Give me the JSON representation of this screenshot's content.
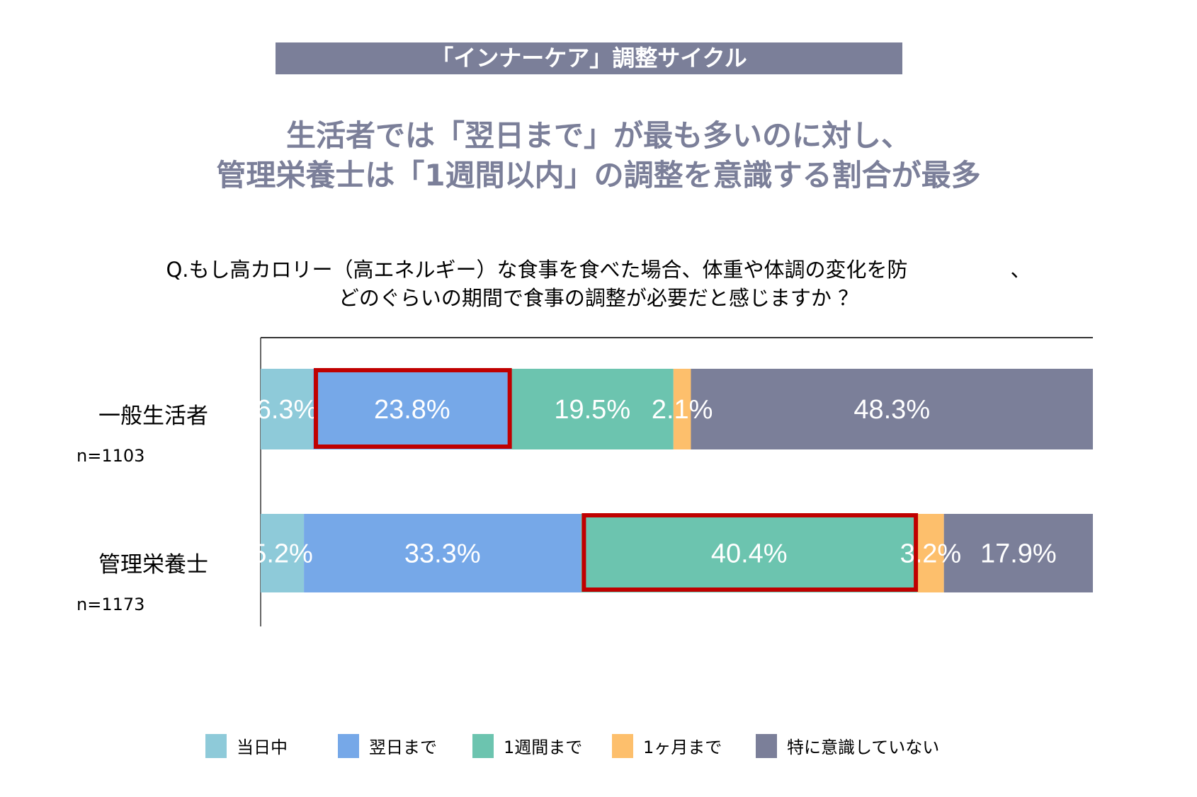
{
  "banner": "「インナーケア」調整サイクル",
  "headline": [
    "生活者では「翌日まで」が最も多いのに対し、",
    "管理栄養士は「1週間以内」の調整を意識する割合が最多"
  ],
  "question": [
    "Q.もし高カロリー（高エネルギー）な食事を食べた場合、体重や体調の変化を防　　　　　、",
    "どのぐらいの期間で食事の調整が必要だと感じますか ？"
  ],
  "rows": [
    {
      "label": "一般生活者",
      "n": "n=1103"
    },
    {
      "label": "管理栄養士",
      "n": "n=1173"
    }
  ],
  "chart_data": {
    "type": "bar",
    "orientation": "horizontal-stacked-100",
    "categories": [
      "一般生活者",
      "管理栄養士"
    ],
    "series": [
      {
        "name": "当日中",
        "values": [
          6.3,
          5.2
        ],
        "color": "#8ecad9"
      },
      {
        "name": "翌日まで",
        "values": [
          23.8,
          33.3
        ],
        "color": "#76a8e8"
      },
      {
        "name": "1週間まで",
        "values": [
          19.5,
          40.4
        ],
        "color": "#6cc4af"
      },
      {
        "name": "1ヶ月まで",
        "values": [
          2.1,
          3.2
        ],
        "color": "#fdbf6c"
      },
      {
        "name": "特に意識していない",
        "values": [
          48.3,
          17.9
        ],
        "color": "#7b7f99"
      }
    ],
    "xlim": [
      0,
      100
    ],
    "highlights": [
      {
        "category": "一般生活者",
        "series": "翌日まで"
      },
      {
        "category": "管理栄養士",
        "series": "1週間まで"
      }
    ],
    "highlight_color": "#c00000",
    "legend_position": "bottom",
    "grid": false
  }
}
